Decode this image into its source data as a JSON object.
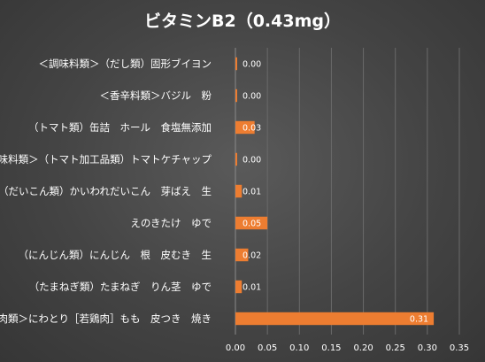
{
  "chart_data": {
    "type": "bar",
    "orientation": "horizontal",
    "title": "ビタミンB2（0.43mg）",
    "xlabel": "",
    "ylabel": "",
    "categories": [
      "＜調味料類＞（だし類）固形ブイヨン",
      "＜香辛料類＞バジル　粉",
      "（トマト類）缶詰　ホール　食塩無添加",
      "＜調味料類＞（トマト加工品類）トマトケチャップ",
      "（だいこん類）かいわれだいこん　芽ばえ　生",
      "えのきたけ　ゆで",
      "（にんじん類）にんじん　根　皮むき　生",
      "（たまねぎ類）たまねぎ　りん茎　ゆで",
      "＜鳥肉類＞にわとり［若鶏肉］もも　皮つき　焼き"
    ],
    "values": [
      0.0,
      0.0,
      0.03,
      0.0,
      0.01,
      0.05,
      0.02,
      0.01,
      0.31
    ],
    "data_labels": [
      "0.00",
      "0.00",
      "0.03",
      "0.00",
      "0.01",
      "0.05",
      "0.02",
      "0.01",
      "0.31"
    ],
    "xlim": [
      0,
      0.35
    ],
    "xticks": [
      "0.00",
      "0.05",
      "0.10",
      "0.15",
      "0.20",
      "0.25",
      "0.30",
      "0.35"
    ],
    "grid": true,
    "legend": "none",
    "bar_color": "#ED7D31"
  }
}
